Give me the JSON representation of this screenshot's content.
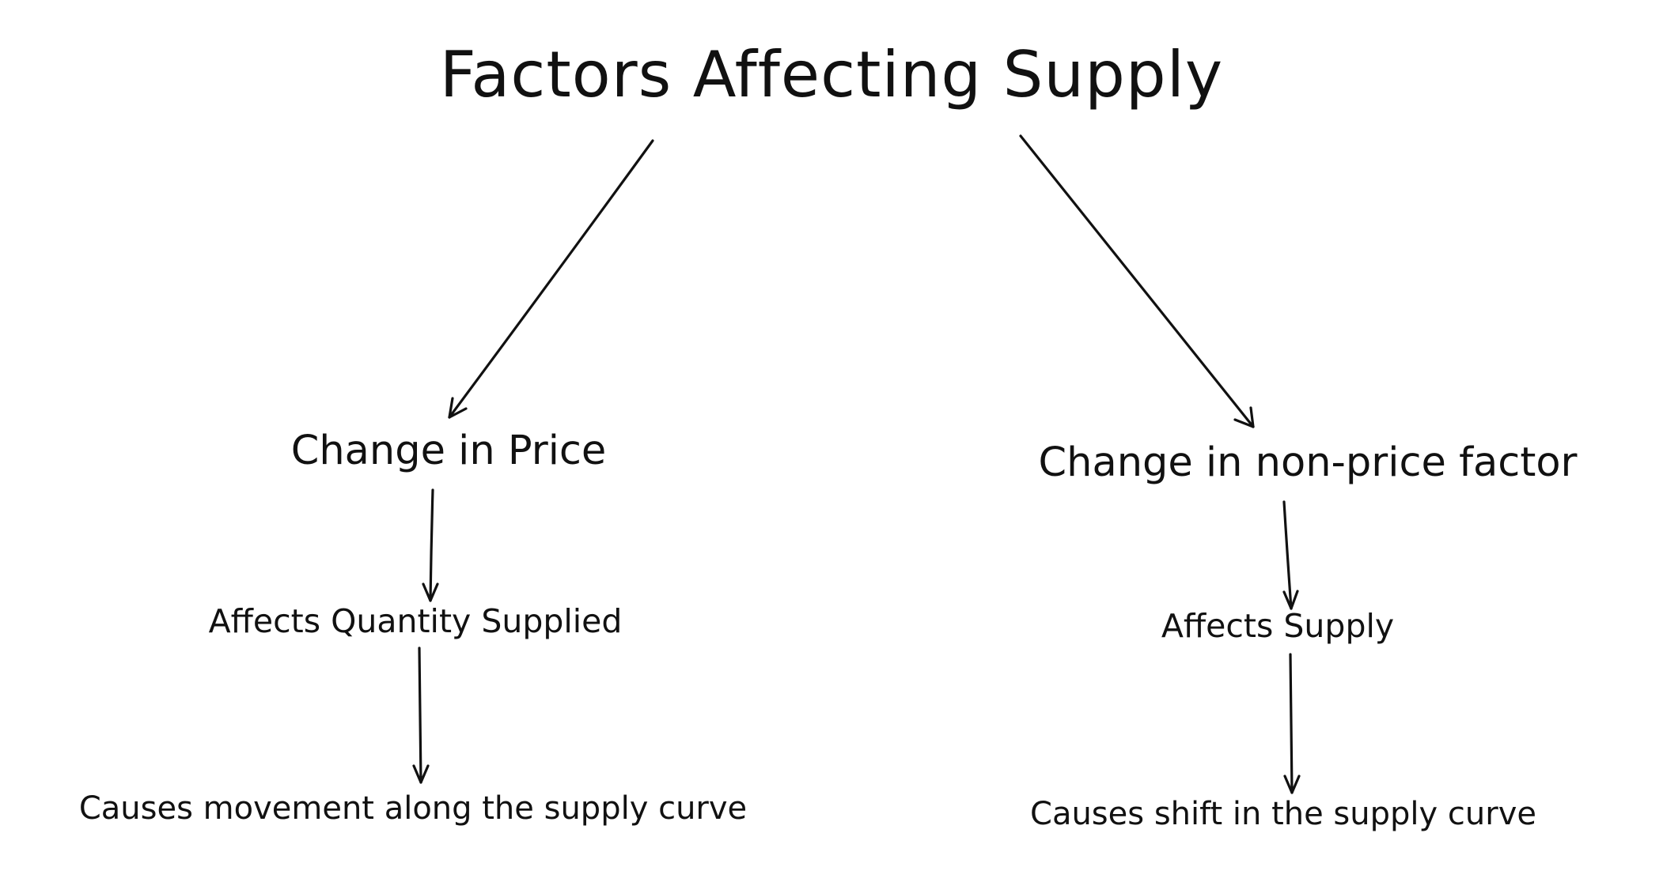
{
  "diagram": {
    "title": "Factors Affecting Supply",
    "left": {
      "cause": "Change in Price",
      "effect": "Affects Quantity Supplied",
      "result": "Causes movement along the supply curve"
    },
    "right": {
      "cause": "Change in non-price factor",
      "effect": "Affects Supply",
      "result": "Causes shift in the supply curve"
    },
    "colors": {
      "ink": "#111111",
      "background": "#ffffff"
    }
  }
}
